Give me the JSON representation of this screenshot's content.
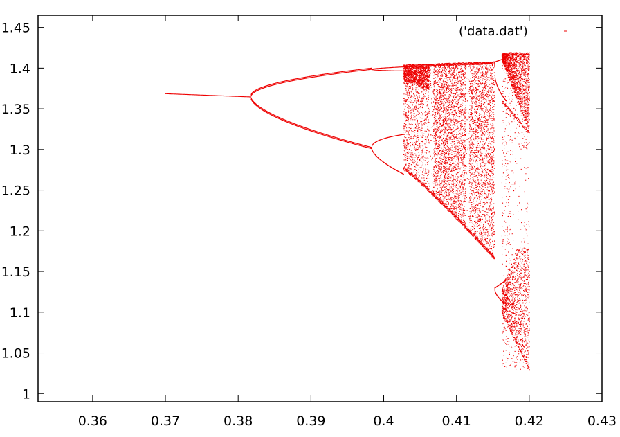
{
  "chart_data": {
    "type": "scatter",
    "title": "",
    "xlabel": "",
    "ylabel": "",
    "xlim": [
      0.3525,
      0.43
    ],
    "ylim": [
      0.99,
      1.465
    ],
    "x_ticks": [
      0.36,
      0.37,
      0.38,
      0.39,
      0.4,
      0.41,
      0.42,
      0.43
    ],
    "x_tick_labels": [
      "0.36",
      "0.37",
      "0.38",
      "0.39",
      "0.4",
      "0.41",
      "0.42",
      "0.43"
    ],
    "y_ticks": [
      1,
      1.05,
      1.1,
      1.15,
      1.2,
      1.25,
      1.3,
      1.35,
      1.4,
      1.45
    ],
    "y_tick_labels": [
      "1",
      "1.05",
      "1.1",
      "1.15",
      "1.2",
      "1.25",
      "1.3",
      "1.35",
      "1.4",
      "1.45"
    ],
    "grid": false,
    "legend_position": "top-right",
    "series": [
      {
        "name": "('data.dat')",
        "color": "#ee0000",
        "marker": "dot",
        "description_of_structure": "period-doubling bifurcation diagram",
        "stable_branch": {
          "x": [
            0.37,
            0.3817
          ],
          "y": [
            1.369,
            1.365
          ]
        },
        "period2_upper": {
          "x": [
            0.3817,
            0.385,
            0.39,
            0.395,
            0.3983
          ],
          "y": [
            1.365,
            1.383,
            1.394,
            1.398,
            1.399
          ]
        },
        "period2_lower": {
          "x": [
            0.3817,
            0.385,
            0.39,
            0.395,
            0.3983
          ],
          "y": [
            1.365,
            1.348,
            1.327,
            1.313,
            1.303
          ]
        },
        "chaos_envelope": {
          "x": [
            0.4025,
            0.405,
            0.41,
            0.4152
          ],
          "y_min": [
            1.275,
            1.25,
            1.215,
            1.165
          ],
          "y_max": [
            1.402,
            1.404,
            1.406,
            1.408
          ]
        },
        "window": {
          "x": [
            0.4152,
            0.42
          ],
          "y_min": [
            1.03,
            1.03
          ],
          "y_max": [
            1.418,
            1.418
          ]
        }
      }
    ]
  }
}
